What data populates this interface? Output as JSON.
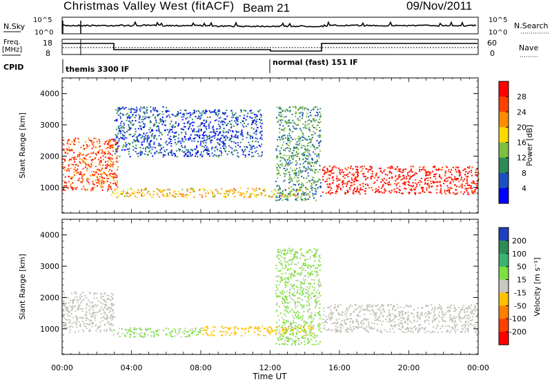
{
  "header": {
    "title": "Christmas Valley West (fitACF)",
    "beam": "Beam 21",
    "date": "09/Nov/2011"
  },
  "noise_panel": {
    "left_label": "N.Sky",
    "left_ticks": [
      "10^5",
      "10^0"
    ],
    "right_ticks": [
      "10^5",
      "10^0"
    ],
    "right_label": "N.Search"
  },
  "freq_panel": {
    "left_label_1": "Freq.",
    "left_label_2": "[MHz]",
    "left_ticks": [
      "18",
      "8"
    ],
    "right_ticks": [
      "60",
      "0"
    ],
    "right_label": "Nave"
  },
  "cpid": {
    "label": "CPID",
    "modes": [
      "themis 3300 IF",
      "normal (fast) 151 IF"
    ]
  },
  "time_axis": {
    "label": "Time UT",
    "ticks": [
      "00:00",
      "04:00",
      "08:00",
      "12:00",
      "16:00",
      "20:00",
      "00:00"
    ]
  },
  "power_panel": {
    "ylabel": "Slant Range [km]",
    "yticks": [
      "1000",
      "2000",
      "3000",
      "4000"
    ],
    "colorbar_label": "Power [dB]",
    "colorbar_ticks": [
      "28",
      "24",
      "20",
      "16",
      "12",
      "8",
      "4"
    ],
    "colors": [
      "#ff0000",
      "#ff4000",
      "#ff8c00",
      "#ffd700",
      "#7fbf3f",
      "#2e8b57",
      "#1e4fbf",
      "#0000ff"
    ]
  },
  "velocity_panel": {
    "ylabel": "Slant Range [km]",
    "yticks": [
      "1000",
      "2000",
      "3000",
      "4000"
    ],
    "colorbar_label": "Velocity [m s⁻¹]",
    "colorbar_ticks": [
      "200",
      "100",
      "50",
      "15",
      "-15",
      "-50",
      "-100",
      "-200"
    ],
    "colors": [
      "#1e3fbf",
      "#2e8b57",
      "#3cb371",
      "#7fdf3f",
      "#c8c8c0",
      "#ffc000",
      "#ff8000",
      "#ff4000",
      "#ff0000"
    ],
    "ground_scatter_color": "#c0c0b8"
  },
  "chart_data": [
    {
      "type": "heatmap",
      "title": "Power",
      "xlabel": "Time UT",
      "ylabel": "Slant Range [km]",
      "x_range_hours": [
        0,
        24
      ],
      "ylim_km": [
        180,
        4500
      ],
      "colorbar": {
        "label": "Power [dB]",
        "range": [
          0,
          30
        ]
      },
      "features": [
        {
          "name": "near-range band",
          "t_start": 0,
          "t_end": 3.2,
          "range_km": [
            900,
            2600
          ],
          "power_dB": 24
        },
        {
          "name": "arc 1",
          "t_start": 3.0,
          "t_end": 6.0,
          "range_km": [
            2000,
            3600
          ],
          "power_dB": 6
        },
        {
          "name": "arc 2",
          "t_start": 6.0,
          "t_end": 11.5,
          "range_km": [
            2000,
            3500
          ],
          "power_dB": 5
        },
        {
          "name": "mid band",
          "t_start": 2.8,
          "t_end": 14.2,
          "range_km": [
            700,
            1000
          ],
          "power_dB": 18
        },
        {
          "name": "descending streak",
          "t_start": 12.3,
          "t_end": 14.9,
          "range_km": [
            600,
            3600
          ],
          "power_dB": 10
        },
        {
          "name": "evening band",
          "t_start": 15.0,
          "t_end": 24.0,
          "range_km": [
            800,
            1700
          ],
          "power_dB": 28
        }
      ]
    },
    {
      "type": "heatmap",
      "title": "Velocity",
      "xlabel": "Time UT",
      "ylabel": "Slant Range [km]",
      "x_range_hours": [
        0,
        24
      ],
      "ylim_km": [
        180,
        4500
      ],
      "colorbar": {
        "label": "Velocity [m s-1]",
        "range": [
          -200,
          200
        ]
      },
      "features": [
        {
          "name": "ground scatter early",
          "t_start": 0,
          "t_end": 3.0,
          "range_km": [
            900,
            2200
          ],
          "velocity": 0
        },
        {
          "name": "green band",
          "t_start": 2.8,
          "t_end": 8.0,
          "range_km": [
            750,
            1050
          ],
          "velocity": 30
        },
        {
          "name": "orange band",
          "t_start": 8.0,
          "t_end": 14.5,
          "range_km": [
            800,
            1100
          ],
          "velocity": -40
        },
        {
          "name": "descending streak",
          "t_start": 12.3,
          "t_end": 14.9,
          "range_km": [
            500,
            3600
          ],
          "velocity": 30
        },
        {
          "name": "ground scatter evening",
          "t_start": 15.0,
          "t_end": 24.0,
          "range_km": [
            900,
            1800
          ],
          "velocity": 0
        }
      ]
    }
  ]
}
